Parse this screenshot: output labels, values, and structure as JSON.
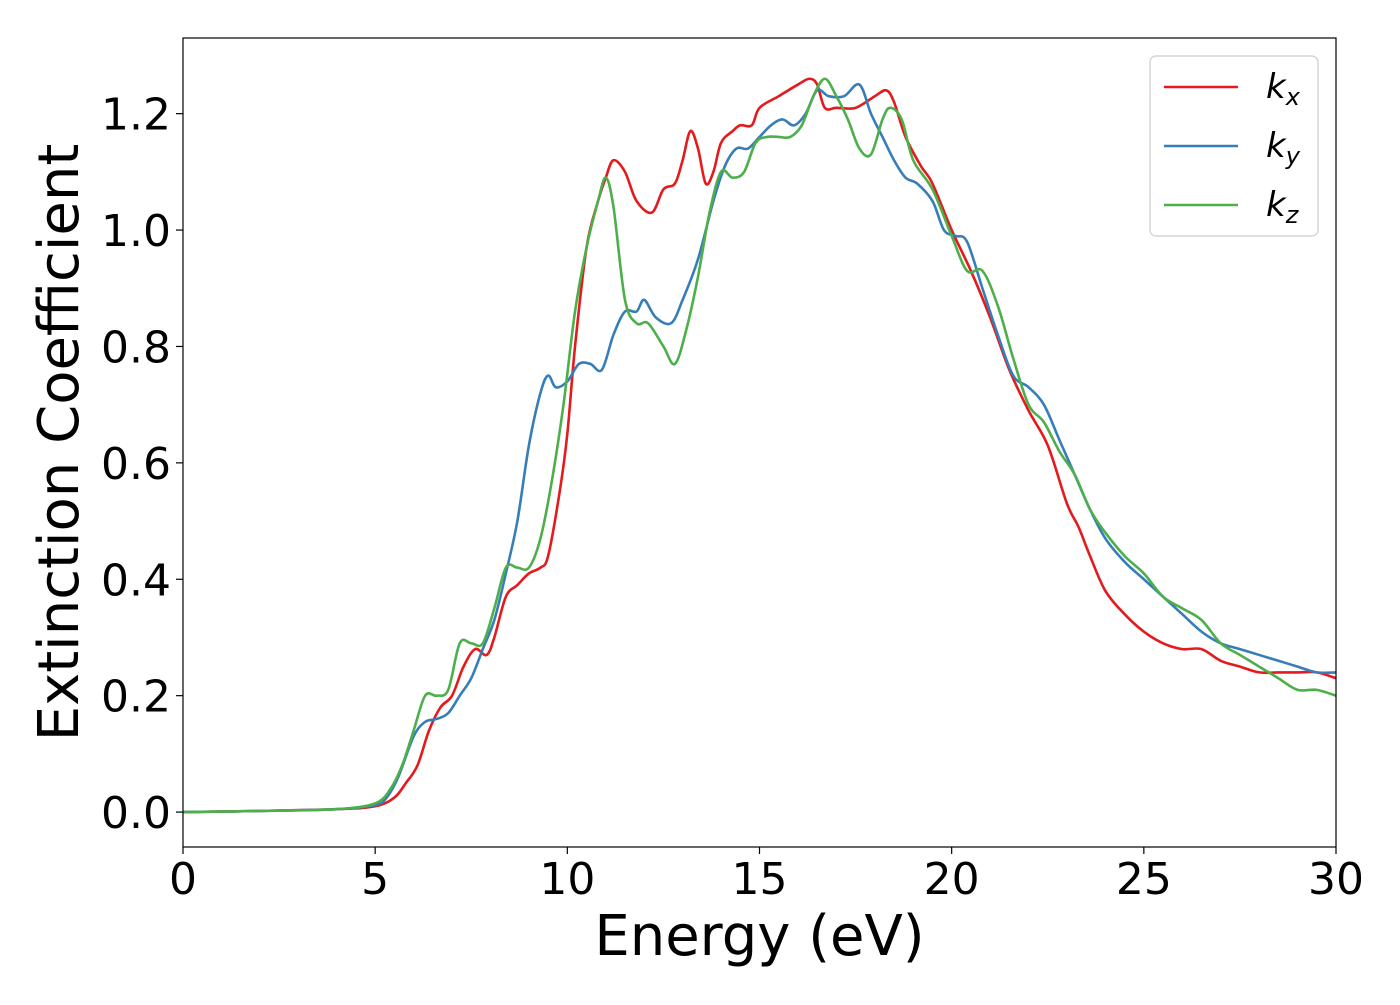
{
  "chart_data": {
    "type": "line",
    "xlabel": "Energy (eV)",
    "ylabel": "Extinction Coefficient",
    "xlim": [
      0,
      30
    ],
    "ylim": [
      -0.06,
      1.33
    ],
    "xticks": [
      0,
      5,
      10,
      15,
      20,
      25,
      30
    ],
    "yticks": [
      0.0,
      0.2,
      0.4,
      0.6,
      0.8,
      1.0,
      1.2
    ],
    "xtick_labels": [
      "0",
      "5",
      "10",
      "15",
      "20",
      "25",
      "30"
    ],
    "ytick_labels": [
      "0.0",
      "0.2",
      "0.4",
      "0.6",
      "0.8",
      "1.0",
      "1.2"
    ],
    "grid": false,
    "legend_position": "top-right",
    "series": [
      {
        "name": "k_x",
        "label_main": "k",
        "label_sub": "x",
        "color": "#e41a1c",
        "points": [
          [
            0,
            0.0
          ],
          [
            2,
            0.002
          ],
          [
            4,
            0.005
          ],
          [
            5,
            0.01
          ],
          [
            5.5,
            0.025
          ],
          [
            5.8,
            0.05
          ],
          [
            6.1,
            0.08
          ],
          [
            6.4,
            0.14
          ],
          [
            6.7,
            0.18
          ],
          [
            7.0,
            0.2
          ],
          [
            7.3,
            0.25
          ],
          [
            7.6,
            0.28
          ],
          [
            7.9,
            0.27
          ],
          [
            8.1,
            0.3
          ],
          [
            8.4,
            0.37
          ],
          [
            8.7,
            0.39
          ],
          [
            9.0,
            0.41
          ],
          [
            9.3,
            0.42
          ],
          [
            9.5,
            0.44
          ],
          [
            9.8,
            0.55
          ],
          [
            10.0,
            0.65
          ],
          [
            10.2,
            0.8
          ],
          [
            10.5,
            0.97
          ],
          [
            10.8,
            1.05
          ],
          [
            11.0,
            1.09
          ],
          [
            11.2,
            1.12
          ],
          [
            11.5,
            1.1
          ],
          [
            11.8,
            1.05
          ],
          [
            12.2,
            1.03
          ],
          [
            12.5,
            1.07
          ],
          [
            12.8,
            1.08
          ],
          [
            13.0,
            1.12
          ],
          [
            13.2,
            1.17
          ],
          [
            13.4,
            1.14
          ],
          [
            13.6,
            1.08
          ],
          [
            13.8,
            1.1
          ],
          [
            14.0,
            1.15
          ],
          [
            14.3,
            1.17
          ],
          [
            14.5,
            1.18
          ],
          [
            14.8,
            1.18
          ],
          [
            15.0,
            1.21
          ],
          [
            15.5,
            1.23
          ],
          [
            16.0,
            1.25
          ],
          [
            16.3,
            1.26
          ],
          [
            16.5,
            1.25
          ],
          [
            16.7,
            1.21
          ],
          [
            17.0,
            1.21
          ],
          [
            17.5,
            1.21
          ],
          [
            18.0,
            1.23
          ],
          [
            18.3,
            1.24
          ],
          [
            18.5,
            1.22
          ],
          [
            18.8,
            1.16
          ],
          [
            19.2,
            1.11
          ],
          [
            19.5,
            1.08
          ],
          [
            20.0,
            1.0
          ],
          [
            20.5,
            0.93
          ],
          [
            21.0,
            0.85
          ],
          [
            21.5,
            0.76
          ],
          [
            22.0,
            0.69
          ],
          [
            22.5,
            0.63
          ],
          [
            23.0,
            0.53
          ],
          [
            23.3,
            0.49
          ],
          [
            23.6,
            0.44
          ],
          [
            24.0,
            0.38
          ],
          [
            24.5,
            0.34
          ],
          [
            25.0,
            0.31
          ],
          [
            25.5,
            0.29
          ],
          [
            26.0,
            0.28
          ],
          [
            26.5,
            0.28
          ],
          [
            27.0,
            0.26
          ],
          [
            27.5,
            0.25
          ],
          [
            28.0,
            0.24
          ],
          [
            28.5,
            0.24
          ],
          [
            29.0,
            0.24
          ],
          [
            29.5,
            0.24
          ],
          [
            30.0,
            0.23
          ]
        ]
      },
      {
        "name": "k_y",
        "label_main": "k",
        "label_sub": "y",
        "color": "#377eb8",
        "points": [
          [
            0,
            0.0
          ],
          [
            2,
            0.002
          ],
          [
            4,
            0.005
          ],
          [
            5,
            0.012
          ],
          [
            5.3,
            0.025
          ],
          [
            5.6,
            0.06
          ],
          [
            6.0,
            0.13
          ],
          [
            6.3,
            0.155
          ],
          [
            6.6,
            0.16
          ],
          [
            6.9,
            0.17
          ],
          [
            7.2,
            0.2
          ],
          [
            7.5,
            0.23
          ],
          [
            7.8,
            0.28
          ],
          [
            8.1,
            0.33
          ],
          [
            8.4,
            0.41
          ],
          [
            8.7,
            0.5
          ],
          [
            9.0,
            0.63
          ],
          [
            9.3,
            0.72
          ],
          [
            9.5,
            0.75
          ],
          [
            9.7,
            0.73
          ],
          [
            10.0,
            0.74
          ],
          [
            10.3,
            0.77
          ],
          [
            10.6,
            0.77
          ],
          [
            10.9,
            0.76
          ],
          [
            11.2,
            0.82
          ],
          [
            11.5,
            0.86
          ],
          [
            11.8,
            0.86
          ],
          [
            12.0,
            0.88
          ],
          [
            12.3,
            0.85
          ],
          [
            12.7,
            0.84
          ],
          [
            13.0,
            0.88
          ],
          [
            13.4,
            0.95
          ],
          [
            13.8,
            1.05
          ],
          [
            14.1,
            1.11
          ],
          [
            14.4,
            1.14
          ],
          [
            14.7,
            1.14
          ],
          [
            15.0,
            1.16
          ],
          [
            15.3,
            1.18
          ],
          [
            15.6,
            1.19
          ],
          [
            15.9,
            1.18
          ],
          [
            16.2,
            1.2
          ],
          [
            16.5,
            1.24
          ],
          [
            16.8,
            1.23
          ],
          [
            17.2,
            1.23
          ],
          [
            17.6,
            1.25
          ],
          [
            17.9,
            1.2
          ],
          [
            18.2,
            1.16
          ],
          [
            18.5,
            1.12
          ],
          [
            18.8,
            1.09
          ],
          [
            19.1,
            1.08
          ],
          [
            19.5,
            1.05
          ],
          [
            19.8,
            1.0
          ],
          [
            20.1,
            0.99
          ],
          [
            20.4,
            0.98
          ],
          [
            20.8,
            0.9
          ],
          [
            21.2,
            0.82
          ],
          [
            21.6,
            0.75
          ],
          [
            22.0,
            0.73
          ],
          [
            22.4,
            0.7
          ],
          [
            22.8,
            0.64
          ],
          [
            23.2,
            0.58
          ],
          [
            23.6,
            0.52
          ],
          [
            24.0,
            0.47
          ],
          [
            24.5,
            0.43
          ],
          [
            25.0,
            0.4
          ],
          [
            25.5,
            0.37
          ],
          [
            26.0,
            0.34
          ],
          [
            26.5,
            0.31
          ],
          [
            27.0,
            0.29
          ],
          [
            27.5,
            0.28
          ],
          [
            28.0,
            0.27
          ],
          [
            28.5,
            0.26
          ],
          [
            29.0,
            0.25
          ],
          [
            29.5,
            0.24
          ],
          [
            30.0,
            0.24
          ]
        ]
      },
      {
        "name": "k_z",
        "label_main": "k",
        "label_sub": "z",
        "color": "#4daf4a",
        "points": [
          [
            0,
            0.0
          ],
          [
            2,
            0.002
          ],
          [
            4,
            0.005
          ],
          [
            5,
            0.015
          ],
          [
            5.4,
            0.04
          ],
          [
            5.7,
            0.08
          ],
          [
            6.0,
            0.14
          ],
          [
            6.3,
            0.2
          ],
          [
            6.6,
            0.2
          ],
          [
            6.9,
            0.21
          ],
          [
            7.2,
            0.29
          ],
          [
            7.5,
            0.29
          ],
          [
            7.8,
            0.29
          ],
          [
            8.1,
            0.35
          ],
          [
            8.4,
            0.42
          ],
          [
            8.7,
            0.42
          ],
          [
            9.0,
            0.42
          ],
          [
            9.3,
            0.47
          ],
          [
            9.6,
            0.57
          ],
          [
            9.9,
            0.7
          ],
          [
            10.2,
            0.86
          ],
          [
            10.5,
            0.97
          ],
          [
            10.8,
            1.05
          ],
          [
            11.0,
            1.09
          ],
          [
            11.2,
            1.04
          ],
          [
            11.5,
            0.88
          ],
          [
            11.8,
            0.84
          ],
          [
            12.1,
            0.84
          ],
          [
            12.5,
            0.8
          ],
          [
            12.8,
            0.77
          ],
          [
            13.1,
            0.83
          ],
          [
            13.4,
            0.92
          ],
          [
            13.7,
            1.03
          ],
          [
            14.0,
            1.1
          ],
          [
            14.3,
            1.09
          ],
          [
            14.6,
            1.1
          ],
          [
            14.9,
            1.15
          ],
          [
            15.2,
            1.16
          ],
          [
            15.5,
            1.16
          ],
          [
            15.8,
            1.16
          ],
          [
            16.1,
            1.18
          ],
          [
            16.4,
            1.23
          ],
          [
            16.7,
            1.26
          ],
          [
            17.0,
            1.23
          ],
          [
            17.3,
            1.19
          ],
          [
            17.6,
            1.14
          ],
          [
            17.9,
            1.13
          ],
          [
            18.2,
            1.19
          ],
          [
            18.4,
            1.21
          ],
          [
            18.7,
            1.19
          ],
          [
            19.0,
            1.12
          ],
          [
            19.5,
            1.07
          ],
          [
            20.0,
            0.99
          ],
          [
            20.4,
            0.93
          ],
          [
            20.8,
            0.93
          ],
          [
            21.2,
            0.87
          ],
          [
            21.6,
            0.78
          ],
          [
            22.0,
            0.7
          ],
          [
            22.4,
            0.67
          ],
          [
            22.8,
            0.62
          ],
          [
            23.2,
            0.58
          ],
          [
            23.6,
            0.52
          ],
          [
            24.0,
            0.48
          ],
          [
            24.5,
            0.44
          ],
          [
            25.0,
            0.41
          ],
          [
            25.5,
            0.37
          ],
          [
            26.0,
            0.35
          ],
          [
            26.5,
            0.33
          ],
          [
            27.0,
            0.29
          ],
          [
            27.5,
            0.27
          ],
          [
            28.0,
            0.25
          ],
          [
            28.5,
            0.23
          ],
          [
            29.0,
            0.21
          ],
          [
            29.5,
            0.21
          ],
          [
            30.0,
            0.2
          ]
        ]
      }
    ]
  }
}
